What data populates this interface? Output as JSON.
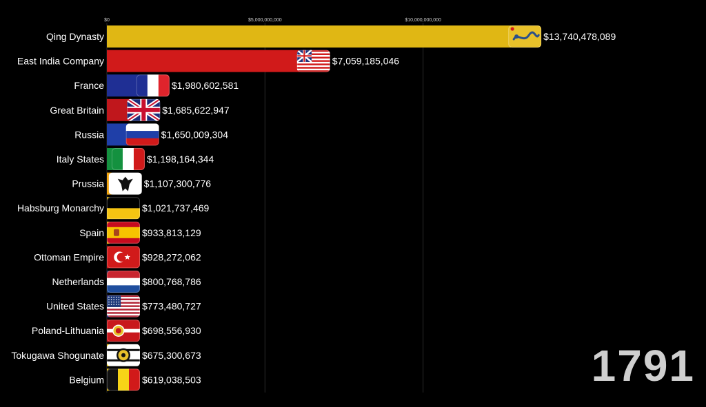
{
  "year": "1791",
  "chart_data": {
    "type": "bar",
    "orientation": "horizontal",
    "title": "",
    "xlabel": "",
    "ylabel": "",
    "xlim": [
      0,
      14500000000
    ],
    "x_ticks": [
      {
        "value": 0,
        "label": "$0"
      },
      {
        "value": 5000000000,
        "label": "$5,000,000,000"
      },
      {
        "value": 10000000000,
        "label": "$10,000,000,000"
      }
    ],
    "grid": true,
    "categories": [
      "Qing Dynasty",
      "East India Company",
      "France",
      "Great Britain",
      "Russia",
      "Italy States",
      "Prussia",
      "Habsburg Monarchy",
      "Spain",
      "Ottoman Empire",
      "Netherlands",
      "United States",
      "Poland-Lithuania",
      "Tokugawa Shogunate",
      "Belgium"
    ],
    "values": [
      13740478089,
      7059185046,
      1980602581,
      1685622947,
      1650009304,
      1198164344,
      1107300776,
      1021737469,
      933813129,
      928272062,
      800768786,
      773480727,
      698556930,
      675300673,
      619038503
    ],
    "value_labels": [
      "$13,740,478,089",
      "$7,059,185,046",
      "$1,980,602,581",
      "$1,685,622,947",
      "$1,650,009,304",
      "$1,198,164,344",
      "$1,107,300,776",
      "$1,021,737,469",
      "$933,813,129",
      "$928,272,062",
      "$800,768,786",
      "$773,480,727",
      "$698,556,930",
      "$675,300,673",
      "$619,038,503"
    ],
    "bar_colors": [
      "#e0b714",
      "#d11a1a",
      "#1f2f94",
      "#c0171c",
      "#1f3fa8",
      "#14913f",
      "#f2a512",
      "#f5c412",
      "#f2c312",
      "#cf1414",
      "#1c3e78",
      "#2a3592",
      "#c8181d",
      "#f0c812",
      "#f0c812"
    ],
    "flags": [
      {
        "name": "qing-dragon-flag",
        "kind": "qing",
        "colors": [
          "#e8c12a",
          "#2a4f8a",
          "#d11a1a"
        ]
      },
      {
        "name": "british-east-india-flag",
        "kind": "eic",
        "colors": [
          "#d11a1a",
          "#ffffff",
          "#1b2d7a"
        ]
      },
      {
        "name": "france-flag",
        "kind": "vertical-tricolor",
        "colors": [
          "#1f2f94",
          "#ffffff",
          "#e0242c"
        ]
      },
      {
        "name": "great-britain-flag",
        "kind": "union-jack",
        "colors": [
          "#1b2d7a",
          "#ffffff",
          "#c8102e"
        ]
      },
      {
        "name": "russia-flag",
        "kind": "horizontal-tricolor",
        "colors": [
          "#ffffff",
          "#1f3fa8",
          "#d11a1a"
        ]
      },
      {
        "name": "italy-flag",
        "kind": "vertical-tricolor",
        "colors": [
          "#14913f",
          "#ffffff",
          "#d11a1a"
        ]
      },
      {
        "name": "prussia-eagle-flag",
        "kind": "prussia",
        "colors": [
          "#ffffff",
          "#111111"
        ]
      },
      {
        "name": "habsburg-flag",
        "kind": "habsburg",
        "colors": [
          "#f5c412",
          "#000000"
        ]
      },
      {
        "name": "spain-flag",
        "kind": "spain",
        "colors": [
          "#c60b1e",
          "#f7c300",
          "#c60b1e"
        ]
      },
      {
        "name": "ottoman-flag",
        "kind": "ottoman",
        "colors": [
          "#d11a1a",
          "#ffffff"
        ]
      },
      {
        "name": "netherlands-flag",
        "kind": "horizontal-tricolor",
        "colors": [
          "#c8252f",
          "#ffffff",
          "#1f4e9e"
        ]
      },
      {
        "name": "united-states-flag",
        "kind": "usa",
        "colors": [
          "#b22234",
          "#ffffff",
          "#1f3a7a"
        ]
      },
      {
        "name": "poland-lithuania-flag",
        "kind": "poland-lithuania",
        "colors": [
          "#c8181d",
          "#ffffff",
          "#e8c12a"
        ]
      },
      {
        "name": "tokugawa-mon-flag",
        "kind": "tokugawa",
        "colors": [
          "#ffffff",
          "#111111",
          "#e8c12a"
        ]
      },
      {
        "name": "belgium-flag",
        "kind": "vertical-tricolor",
        "colors": [
          "#111111",
          "#f7d417",
          "#d11a1a"
        ]
      }
    ]
  }
}
